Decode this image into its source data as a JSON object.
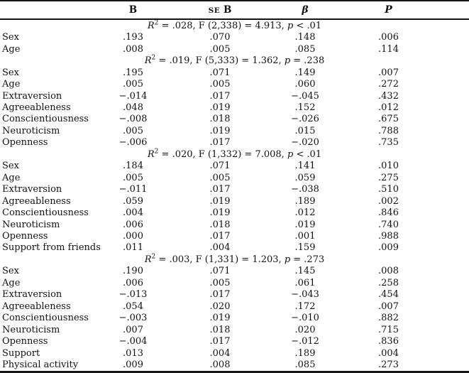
{
  "table": {
    "headers": {
      "b": "B",
      "se_small": "SE",
      "se_big": "B",
      "beta": "β",
      "p": "P"
    },
    "sections": [
      {
        "stats": {
          "r_label": "R",
          "r_sup": "2",
          "r2": ".028",
          "f_label": "F",
          "f_df": "(2,338)",
          "f_value": "4.913",
          "p_label": "p",
          "p_op": "<",
          "p_value": ".01"
        },
        "rows": [
          {
            "label": "Sex",
            "b": ".193",
            "se_b": ".070",
            "beta": ".148",
            "p": ".006"
          },
          {
            "label": "Age",
            "b": ".008",
            "se_b": ".005",
            "beta": ".085",
            "p": ".114"
          }
        ]
      },
      {
        "stats": {
          "r_label": "R",
          "r_sup": "2",
          "r2": ".019",
          "f_label": "F",
          "f_df": "(5,333)",
          "f_value": "1.362",
          "p_label": "p",
          "p_op": "=",
          "p_value": ".238"
        },
        "rows": [
          {
            "label": "Sex",
            "b": ".195",
            "se_b": ".071",
            "beta": ".149",
            "p": ".007"
          },
          {
            "label": "Age",
            "b": ".005",
            "se_b": ".005",
            "beta": ".060",
            "p": ".272"
          },
          {
            "label": "Extraversion",
            "b": "−.014",
            "se_b": ".017",
            "beta": "−.045",
            "p": ".432"
          },
          {
            "label": "Agreeableness",
            "b": ".048",
            "se_b": ".019",
            "beta": ".152",
            "p": ".012"
          },
          {
            "label": "Conscientiousness",
            "b": "−.008",
            "se_b": ".018",
            "beta": "−.026",
            "p": ".675"
          },
          {
            "label": "Neuroticism",
            "b": ".005",
            "se_b": ".019",
            "beta": ".015",
            "p": ".788"
          },
          {
            "label": "Openness",
            "b": "−.006",
            "se_b": ".017",
            "beta": "−.020",
            "p": ".735"
          }
        ]
      },
      {
        "stats": {
          "r_label": "R",
          "r_sup": "2",
          "r2": ".020",
          "f_label": "F",
          "f_df": "(1,332)",
          "f_value": "7.008",
          "p_label": "p",
          "p_op": "<",
          "p_value": ".01"
        },
        "rows": [
          {
            "label": "Sex",
            "b": ".184",
            "se_b": ".071",
            "beta": ".141",
            "p": ".010"
          },
          {
            "label": "Age",
            "b": ".005",
            "se_b": ".005",
            "beta": ".059",
            "p": ".275"
          },
          {
            "label": "Extraversion",
            "b": "−.011",
            "se_b": ".017",
            "beta": "−.038",
            "p": ".510"
          },
          {
            "label": "Agreeableness",
            "b": ".059",
            "se_b": ".019",
            "beta": ".189",
            "p": ".002"
          },
          {
            "label": "Conscientiousness",
            "b": ".004",
            "se_b": ".019",
            "beta": ".012",
            "p": ".846"
          },
          {
            "label": "Neuroticism",
            "b": ".006",
            "se_b": ".018",
            "beta": ".019",
            "p": ".740"
          },
          {
            "label": "Openness",
            "b": ".000",
            "se_b": ".017",
            "beta": ".001",
            "p": ".988"
          },
          {
            "label": "Support from friends",
            "b": ".011",
            "se_b": ".004",
            "beta": ".159",
            "p": ".009"
          }
        ]
      },
      {
        "stats": {
          "r_label": "R",
          "r_sup": "2",
          "r2": ".003",
          "f_label": "F",
          "f_df": "(1,331)",
          "f_value": "1.203",
          "p_label": "p",
          "p_op": "=",
          "p_value": ".273"
        },
        "rows": [
          {
            "label": "Sex",
            "b": ".190",
            "se_b": ".071",
            "beta": ".145",
            "p": ".008"
          },
          {
            "label": "Age",
            "b": ".006",
            "se_b": ".005",
            "beta": ".061",
            "p": ".258"
          },
          {
            "label": "Extraversion",
            "b": "−.013",
            "se_b": ".017",
            "beta": "−.043",
            "p": ".454"
          },
          {
            "label": "Agreeableness",
            "b": ".054",
            "se_b": ".020",
            "beta": ".172",
            "p": ".007"
          },
          {
            "label": "Conscientiousness",
            "b": "−.003",
            "se_b": ".019",
            "beta": "−.010",
            "p": ".882"
          },
          {
            "label": "Neuroticism",
            "b": ".007",
            "se_b": ".018",
            "beta": ".020",
            "p": ".715"
          },
          {
            "label": "Openness",
            "b": "−.004",
            "se_b": ".017",
            "beta": "−.012",
            "p": ".836"
          },
          {
            "label": "Support",
            "b": ".013",
            "se_b": ".004",
            "beta": ".189",
            "p": ".004"
          },
          {
            "label": "Physical activity",
            "b": ".009",
            "se_b": ".008",
            "beta": ".085",
            "p": ".273"
          }
        ]
      }
    ]
  }
}
